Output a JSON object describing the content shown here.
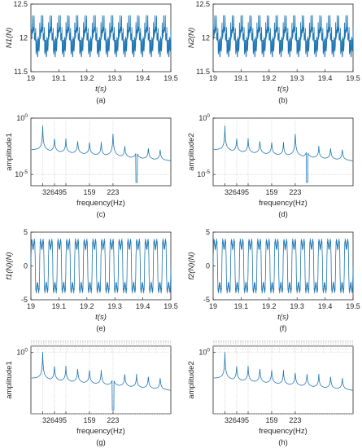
{
  "colors": {
    "signal": "#1f77b4",
    "axis": "#262626",
    "grid": "#c8c8c8"
  },
  "chart_data": [
    {
      "panel": "(a)",
      "type": "line",
      "ylabel": "N1(N)",
      "xlabel": "t(s)",
      "xlim": [
        19,
        19.5
      ],
      "ylim": [
        11.5,
        12.5
      ],
      "xticks": [
        "19",
        "19.1",
        "19.2",
        "19.3",
        "19.4",
        "19.5"
      ],
      "yticks": [
        "11.5",
        "12",
        "12.5"
      ],
      "signal": {
        "mean": 12,
        "fundamental_hz": 32,
        "amplitude": 0.18,
        "envelope": [
          11.72,
          12.33
        ]
      }
    },
    {
      "panel": "(b)",
      "type": "line",
      "ylabel": "N2(N)",
      "xlabel": "t(s)",
      "xlim": [
        19,
        19.5
      ],
      "ylim": [
        11.5,
        12.5
      ],
      "xticks": [
        "19",
        "19.1",
        "19.2",
        "19.3",
        "19.4",
        "19.5"
      ],
      "yticks": [
        "11.5",
        "12",
        "12.5"
      ],
      "signal": {
        "mean": 12,
        "fundamental_hz": 32,
        "amplitude": 0.18,
        "envelope": [
          11.72,
          12.33
        ]
      }
    },
    {
      "panel": "(c)",
      "type": "line",
      "ylabel": "amplitude1",
      "xlabel": "frequency(Hz)",
      "scale": "log",
      "ylim_log10": [
        -6,
        0
      ],
      "yticks": [
        "10^0",
        "10^-5"
      ],
      "xticks": [
        "32",
        "64",
        "95",
        "159",
        "223"
      ],
      "tick_positions_hz": [
        32,
        64,
        95,
        159,
        223
      ],
      "peaks_hz": [
        32,
        64,
        95,
        127,
        159,
        191,
        223,
        255,
        287,
        319,
        351
      ],
      "notch_hz": 287
    },
    {
      "panel": "(d)",
      "type": "line",
      "ylabel": "amplitude2",
      "xlabel": "frequency(Hz)",
      "scale": "log",
      "ylim_log10": [
        -6,
        0
      ],
      "yticks": [
        "10^0",
        "10^-5"
      ],
      "xticks": [
        "32",
        "64",
        "95",
        "159",
        "223"
      ],
      "tick_positions_hz": [
        32,
        64,
        95,
        159,
        223
      ],
      "peaks_hz": [
        32,
        64,
        95,
        127,
        159,
        191,
        223,
        255,
        287,
        319,
        351
      ],
      "notch_hz": 255
    },
    {
      "panel": "(e)",
      "type": "line",
      "ylabel": "f1(N)(N)",
      "xlabel": "t(s)",
      "xlim": [
        19,
        19.5
      ],
      "ylim": [
        -5,
        5
      ],
      "xticks": [
        "19",
        "19.1",
        "19.2",
        "19.3",
        "19.4",
        "19.5"
      ],
      "yticks": [
        "-5",
        "0",
        "5"
      ],
      "signal": {
        "fundamental_hz": 32,
        "amplitude": 3.8
      }
    },
    {
      "panel": "(f)",
      "type": "line",
      "ylabel": "f2(N)(N)",
      "xlabel": "t(s)",
      "xlim": [
        19,
        19.5
      ],
      "ylim": [
        -5,
        5
      ],
      "xticks": [
        "19",
        "19.1",
        "19.2",
        "19.3",
        "19.4",
        "19.5"
      ],
      "yticks": [
        "-5",
        "0",
        "5"
      ],
      "signal": {
        "fundamental_hz": 32,
        "amplitude": 3.8
      }
    },
    {
      "panel": "(g)",
      "type": "line",
      "ylabel": "amplitude1",
      "xlabel": "frequency(Hz)",
      "scale": "log",
      "ylim_log10": [
        -5,
        0.5
      ],
      "yticks": [
        "10^0"
      ],
      "xticks": [
        "32",
        "64",
        "95",
        "159",
        "223"
      ],
      "tick_positions_hz": [
        32,
        64,
        95,
        159,
        223
      ],
      "peaks_hz": [
        32,
        64,
        95,
        127,
        159,
        191,
        223,
        255,
        287,
        319,
        351
      ],
      "notch_hz": 223
    },
    {
      "panel": "(h)",
      "type": "line",
      "ylabel": "amplitude2",
      "xlabel": "frequency(Hz)",
      "scale": "log",
      "ylim_log10": [
        -5,
        0.5
      ],
      "yticks": [
        "10^0"
      ],
      "xticks": [
        "32",
        "64",
        "95",
        "159",
        "223"
      ],
      "tick_positions_hz": [
        32,
        64,
        95,
        159,
        223
      ],
      "peaks_hz": [
        32,
        64,
        95,
        127,
        159,
        191,
        223,
        255,
        287,
        319,
        351
      ],
      "notch_hz": null
    }
  ]
}
